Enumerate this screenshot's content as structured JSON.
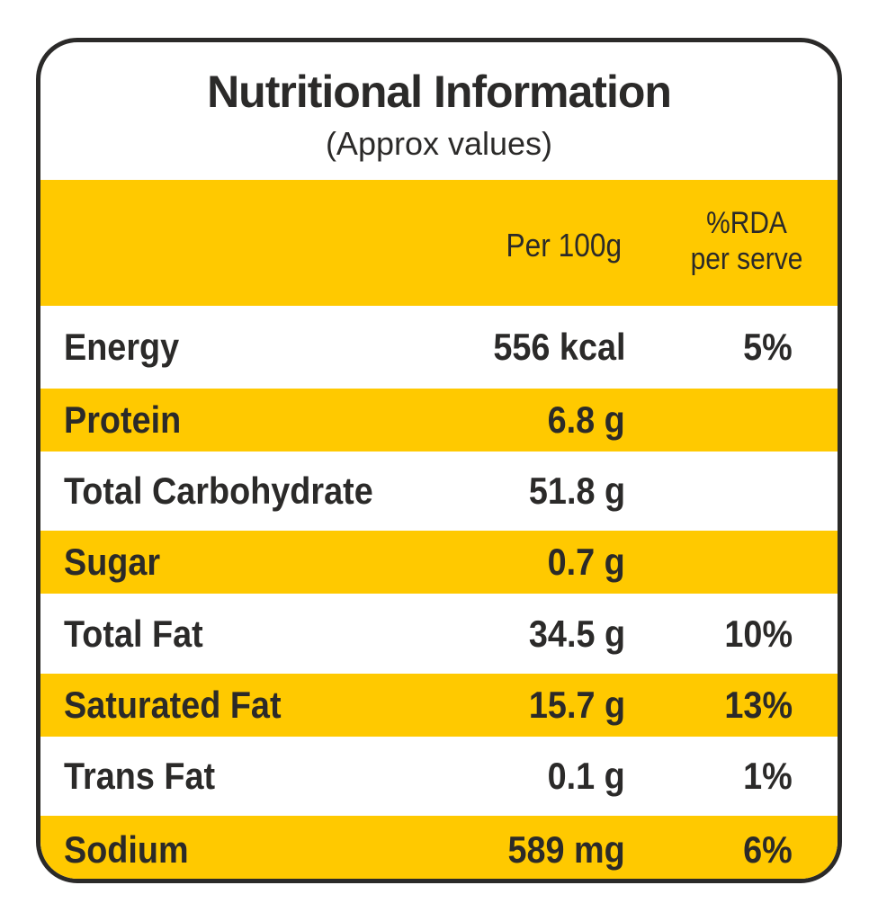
{
  "title": "Nutritional Information",
  "subtitle": "(Approx values)",
  "colors": {
    "accent": "#ffc900",
    "text": "#2b2a29",
    "border": "#2b2a29"
  },
  "header": {
    "per_100g": "Per 100g",
    "rda_line1": "%RDA",
    "rda_line2": "per serve"
  },
  "rows": [
    {
      "label": "Energy",
      "value": "556 kcal",
      "rda": "5%"
    },
    {
      "label": "Protein",
      "value": "6.8 g",
      "rda": ""
    },
    {
      "label": "Total Carbohydrate",
      "value": "51.8 g",
      "rda": ""
    },
    {
      "label": "Sugar",
      "value": "0.7 g",
      "rda": ""
    },
    {
      "label": "Total Fat",
      "value": "34.5 g",
      "rda": "10%"
    },
    {
      "label": "Saturated Fat",
      "value": "15.7 g",
      "rda": "13%"
    },
    {
      "label": "Trans Fat",
      "value": "0.1 g",
      "rda": "1%"
    },
    {
      "label": "Sodium",
      "value": "589 mg",
      "rda": "6%"
    }
  ]
}
